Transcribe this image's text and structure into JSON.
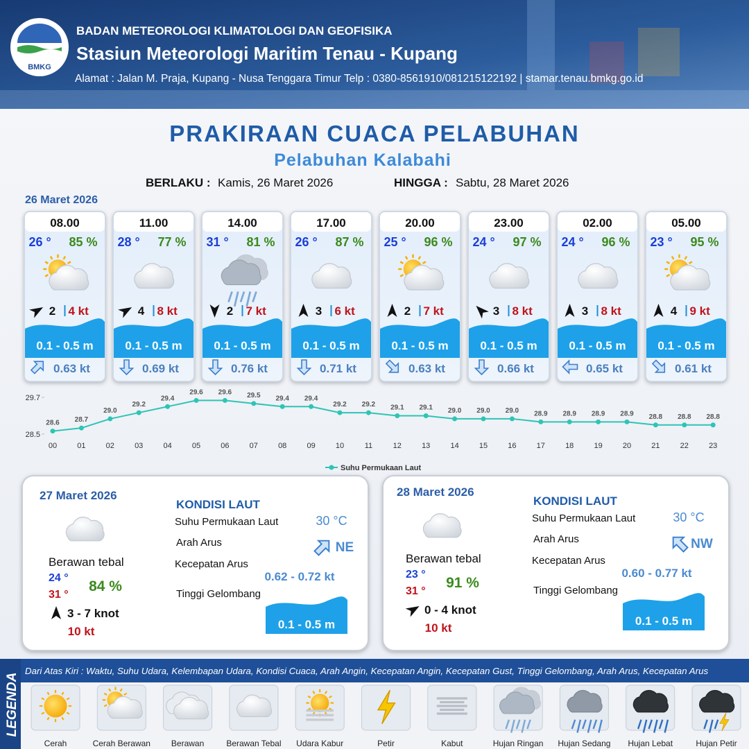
{
  "header": {
    "logo_text": "BMKG",
    "agency": "BADAN METEOROLOGI KLIMATOLOGI DAN GEOFISIKA",
    "station": "Stasiun Meteorologi Maritim Tenau - Kupang",
    "address": "Alamat : Jalan M. Praja, Kupang - Nusa Tenggara Timur Telp : 0380-8561910/081215122192  | stamar.tenau.bmkg.go.id"
  },
  "title": "PRAKIRAAN CUACA PELABUHAN",
  "subtitle": "Pelabuhan Kalabahi",
  "validity": {
    "from_label": "BERLAKU :",
    "from": "Kamis, 26 Maret 2026",
    "to_label": "HINGGA :",
    "to": "Sabtu, 28 Maret 2026"
  },
  "today": {
    "date": "26 Maret 2026",
    "forecasts": [
      {
        "time": "08.00",
        "temp": "26 °",
        "humidity": "85 %",
        "wind_force": "2",
        "gust": "4 kt",
        "wave": "0.1 - 0.5 m",
        "current": "0.63 kt"
      },
      {
        "time": "11.00",
        "temp": "28 °",
        "humidity": "77 %",
        "wind_force": "4",
        "gust": "8 kt",
        "wave": "0.1 - 0.5 m",
        "current": "0.69 kt"
      },
      {
        "time": "14.00",
        "temp": "31 °",
        "humidity": "81 %",
        "wind_force": "2",
        "gust": "7 kt",
        "wave": "0.1 - 0.5 m",
        "current": "0.76 kt"
      },
      {
        "time": "17.00",
        "temp": "26 °",
        "humidity": "87 %",
        "wind_force": "3",
        "gust": "6 kt",
        "wave": "0.1 - 0.5 m",
        "current": "0.71 kt"
      },
      {
        "time": "20.00",
        "temp": "25 °",
        "humidity": "96 %",
        "wind_force": "2",
        "gust": "7 kt",
        "wave": "0.1 - 0.5 m",
        "current": "0.63 kt"
      },
      {
        "time": "23.00",
        "temp": "24 °",
        "humidity": "97 %",
        "wind_force": "3",
        "gust": "8 kt",
        "wave": "0.1 - 0.5 m",
        "current": "0.66 kt"
      },
      {
        "time": "02.00",
        "temp": "24 °",
        "humidity": "96 %",
        "wind_force": "3",
        "gust": "8 kt",
        "wave": "0.1 - 0.5 m",
        "current": "0.65 kt"
      },
      {
        "time": "05.00",
        "temp": "23 °",
        "humidity": "95 %",
        "wind_force": "4",
        "gust": "9 kt",
        "wave": "0.1 - 0.5 m",
        "current": "0.61 kt"
      }
    ]
  },
  "sst_chart": {
    "type": "line",
    "categories": [
      "00",
      "01",
      "02",
      "03",
      "04",
      "05",
      "06",
      "07",
      "08",
      "09",
      "10",
      "11",
      "12",
      "13",
      "14",
      "15",
      "16",
      "17",
      "18",
      "19",
      "20",
      "21",
      "22",
      "23"
    ],
    "series": [
      {
        "name": "Suhu Permukaan Laut",
        "color": "#2ec4b6",
        "values": [
          28.6,
          28.7,
          29.0,
          29.2,
          29.4,
          29.6,
          29.6,
          29.5,
          29.4,
          29.4,
          29.2,
          29.2,
          29.1,
          29.1,
          29.0,
          29.0,
          29.0,
          28.9,
          28.9,
          28.9,
          28.9,
          28.8,
          28.8,
          28.8
        ],
        "value_labels": [
          "28.6",
          "28.7",
          "29.0",
          "29.2",
          "29.4",
          "29.6",
          "29.6",
          "29.5",
          "29.4",
          "29.4",
          "29.2",
          "29.2",
          "29.1",
          "29.1",
          "29.0",
          "29.0",
          "29.0",
          "28.9",
          "28.9",
          "28.9",
          "28.9",
          "28.8",
          "28.8",
          "28.8"
        ]
      }
    ],
    "ylim": [
      28.5,
      29.7
    ],
    "yticks": [
      28.5,
      29.7
    ]
  },
  "outlook": [
    {
      "date": "27 Maret 2026",
      "condition": "Berawan tebal",
      "temp_min": "24 °",
      "temp_max": "31 °",
      "humidity": "84 %",
      "wind": "3  - 7 knot",
      "gust": "10 kt",
      "sea_heading": "KONDISI LAUT",
      "sea_temp_label": "Suhu Permukaan Laut",
      "sea_temp": "30 °C",
      "current_dir_label": "Arah Arus",
      "current_dir": "NE",
      "current_speed_label": "Kecepatan Arus",
      "current_speed": "0.62 - 0.72 kt",
      "wave_label": "Tinggi Gelombang",
      "wave": "0.1 - 0.5 m"
    },
    {
      "date": "28 Maret 2026",
      "condition": "Berawan tebal",
      "temp_min": "23 °",
      "temp_max": "31 °",
      "humidity": "91 %",
      "wind": "0  - 4 knot",
      "gust": "10 kt",
      "sea_heading": "KONDISI LAUT",
      "sea_temp_label": "Suhu Permukaan Laut",
      "sea_temp": "30 °C",
      "current_dir_label": "Arah Arus",
      "current_dir": "NW",
      "current_speed_label": "Kecepatan Arus",
      "current_speed": "0.60 - 0.77 kt",
      "wave_label": "Tinggi Gelombang",
      "wave": "0.1 - 0.5 m"
    }
  ],
  "legend": {
    "title": "LEGENDA",
    "description": "Dari Atas Kiri : Waktu, Suhu Udara, Kelembapan Udara, Kondisi Cuaca, Arah Angin, Kecepatan Angin, Kecepatan Gust, Tinggi Gelombang, Arah Arus, Kecepatan Arus",
    "items": [
      "Cerah",
      "Cerah Berawan",
      "Berawan",
      "Berawan Tebal",
      "Udara Kabur",
      "Petir",
      "Kabut",
      "Hujan Ringan",
      "Hujan Sedang",
      "Hujan Lebat",
      "Hujan Petir"
    ]
  }
}
